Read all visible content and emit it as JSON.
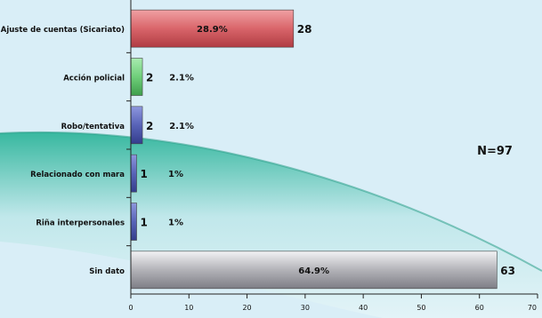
{
  "colors": {
    "background": "#d9eef7",
    "swoosh": "#3cbfa6",
    "axis": "#222222"
  },
  "chart_data": {
    "type": "bar",
    "orientation": "horizontal",
    "title": "",
    "xlabel": "",
    "ylabel": "",
    "xlim": [
      0,
      70
    ],
    "x_ticks": [
      "0",
      "10",
      "20",
      "30",
      "40",
      "50",
      "60",
      "70"
    ],
    "categories": [
      "Ajuste de cuentas (Sicariato)",
      "Acción policial",
      "Robo/tentativa",
      "Relacionado con mara",
      "Riña interpersonales",
      "Sin dato"
    ],
    "values": [
      28,
      2,
      2,
      1,
      1,
      63
    ],
    "percent_labels": [
      "28.9%",
      "2.1%",
      "2.1%",
      "1%",
      "1%",
      "64.9%"
    ],
    "value_labels": [
      "28",
      "2",
      "2",
      "1",
      "1",
      "63"
    ],
    "bar_colors": [
      "#d9656a",
      "#6fcf7a",
      "#5863b8",
      "#5863b8",
      "#5863b8",
      "#b3b3b8"
    ],
    "annotation": "N=97",
    "grid": false
  }
}
